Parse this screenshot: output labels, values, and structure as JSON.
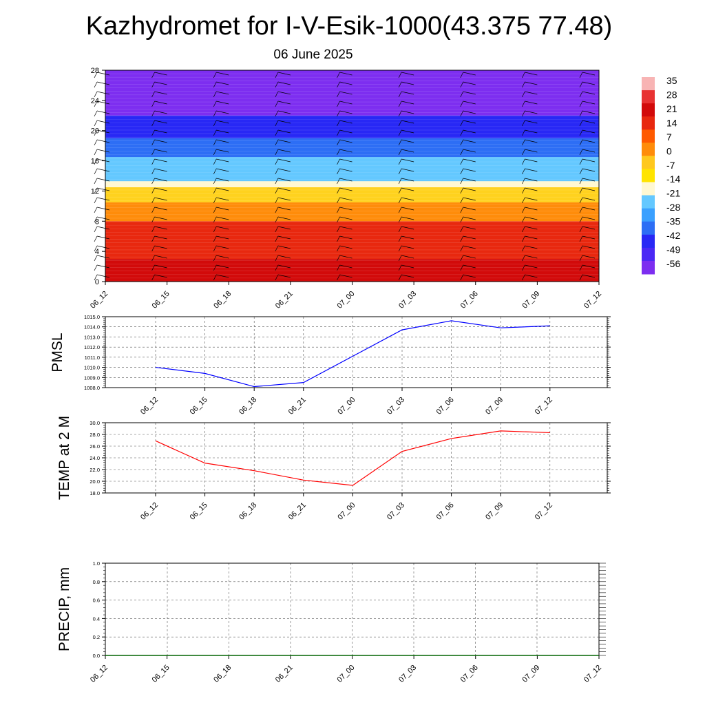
{
  "header": {
    "title": "Kazhydromet for I-V-Esik-1000(43.375 77.48)",
    "subtitle": "06 June 2025"
  },
  "chart_data": [
    {
      "type": "heatmap",
      "name": "vertical-profile",
      "x_tick_labels": [
        "06_12",
        "06_15",
        "06_18",
        "06_21",
        "07_00",
        "07_03",
        "07_06",
        "07_09",
        "07_12"
      ],
      "y_tick_labels": [
        "0",
        "4",
        "8",
        "12",
        "16",
        "20",
        "24",
        "28"
      ],
      "ylim": [
        0,
        28
      ],
      "colorbar_labels": [
        "35",
        "28",
        "21",
        "14",
        "7",
        "0",
        "-7",
        "-14",
        "-21",
        "-28",
        "-35",
        "-42",
        "-49",
        "-56"
      ],
      "colors": {
        "hot": "#c80000",
        "red": "#e41e12",
        "orange": "#ff8c00",
        "yellow": "#ffe400",
        "pale": "#fff7c8",
        "cyan": "#6fd4ff",
        "blue": "#1e64f0",
        "deep_blue": "#2828ff",
        "violet": "#7d2cf0"
      },
      "bands": [
        {
          "from": 0,
          "to": 3,
          "color": "#d20a0a"
        },
        {
          "from": 3,
          "to": 8,
          "color": "#e8280f"
        },
        {
          "from": 8,
          "to": 10.5,
          "color": "#ff8c0a"
        },
        {
          "from": 10.5,
          "to": 12.5,
          "color": "#ffd21e"
        },
        {
          "from": 12.5,
          "to": 13.3,
          "color": "#fff8d2"
        },
        {
          "from": 13.3,
          "to": 16.5,
          "color": "#64c8ff"
        },
        {
          "from": 16.5,
          "to": 19,
          "color": "#2d6ef5"
        },
        {
          "from": 19,
          "to": 22,
          "color": "#2828f5"
        },
        {
          "from": 22,
          "to": 28,
          "color": "#7d2ef0"
        }
      ],
      "grid": false
    },
    {
      "type": "line",
      "name": "PMSL",
      "ylabel": "PMSL",
      "categories": [
        "06_12",
        "06_15",
        "06_18",
        "06_21",
        "07_00",
        "07_03",
        "07_06",
        "07_09",
        "07_12"
      ],
      "values": [
        1010.0,
        1009.4,
        1008.1,
        1008.5,
        1011.1,
        1013.7,
        1014.6,
        1013.9,
        1014.1
      ],
      "y_tick_labels": [
        "1008.0",
        "1009.0",
        "1010.0",
        "1011.0",
        "1012.0",
        "1013.0",
        "1014.0",
        "1015.0"
      ],
      "ylim": [
        1008,
        1015
      ],
      "color": "#0000ff",
      "grid": true
    },
    {
      "type": "line",
      "name": "TEMP",
      "ylabel": "TEMP at 2 M",
      "categories": [
        "06_12",
        "06_15",
        "06_18",
        "06_21",
        "07_00",
        "07_03",
        "07_06",
        "07_09",
        "07_12"
      ],
      "values": [
        26.9,
        23.1,
        21.8,
        20.2,
        19.3,
        25.1,
        27.3,
        28.6,
        28.3
      ],
      "y_tick_labels": [
        "18.0",
        "20.0",
        "22.0",
        "24.0",
        "26.0",
        "28.0",
        "30.0"
      ],
      "ylim": [
        18,
        30
      ],
      "color": "#ff0000",
      "grid": true
    },
    {
      "type": "line",
      "name": "PRECIP",
      "ylabel": "PRECIP, mm",
      "categories": [
        "06_12",
        "06_15",
        "06_18",
        "06_21",
        "07_00",
        "07_03",
        "07_06",
        "07_09",
        "07_12"
      ],
      "values": [
        0,
        0,
        0,
        0,
        0,
        0,
        0,
        0,
        0
      ],
      "y_tick_labels": [
        "0.0",
        "0.2",
        "0.4",
        "0.6",
        "0.8",
        "1.0"
      ],
      "ylim": [
        0,
        1
      ],
      "color": "#006400",
      "grid": true
    }
  ]
}
